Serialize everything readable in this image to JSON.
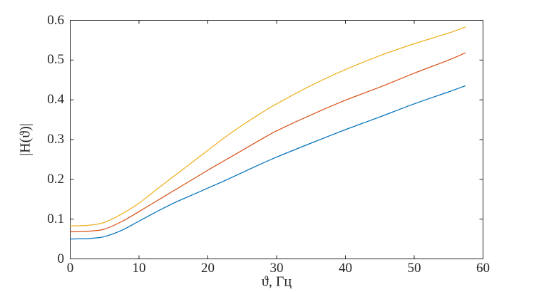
{
  "figure": {
    "background": "#ffffff",
    "axis_color": "#262626",
    "tick_label_color": "#262626"
  },
  "chart_data": {
    "type": "line",
    "title": "",
    "xlabel": "ϑ, Гц",
    "ylabel": "|H(ϑ)|",
    "xlim": [
      0,
      60
    ],
    "ylim": [
      0,
      0.6
    ],
    "x_ticks": [
      "0",
      "10",
      "20",
      "30",
      "40",
      "50",
      "60"
    ],
    "y_ticks": [
      "0",
      "0.1",
      "0.2",
      "0.3",
      "0.4",
      "0.5",
      "0.6"
    ],
    "grid": false,
    "legend": "none",
    "box": true,
    "x": [
      0,
      1.5,
      3,
      5,
      7.5,
      10,
      12.5,
      15,
      17.5,
      20,
      22.5,
      25,
      27.5,
      30,
      35,
      40,
      45,
      50,
      55,
      57.4
    ],
    "series": [
      {
        "name": "curve-blue",
        "color": "#0072BD",
        "values": [
          0.05,
          0.0505,
          0.0515,
          0.056,
          0.072,
          0.095,
          0.118,
          0.14,
          0.159,
          0.178,
          0.197,
          0.217,
          0.237,
          0.256,
          0.291,
          0.325,
          0.357,
          0.39,
          0.42,
          0.435
        ]
      },
      {
        "name": "curve-orange",
        "color": "#D95319",
        "values": [
          0.068,
          0.0685,
          0.07,
          0.075,
          0.094,
          0.119,
          0.145,
          0.171,
          0.197,
          0.223,
          0.248,
          0.273,
          0.298,
          0.322,
          0.362,
          0.399,
          0.432,
          0.467,
          0.5,
          0.518
        ]
      },
      {
        "name": "curve-yellow",
        "color": "#EDB120",
        "values": [
          0.083,
          0.0835,
          0.085,
          0.092,
          0.113,
          0.14,
          0.174,
          0.207,
          0.24,
          0.273,
          0.306,
          0.336,
          0.364,
          0.39,
          0.436,
          0.476,
          0.511,
          0.541,
          0.568,
          0.583
        ]
      }
    ]
  }
}
